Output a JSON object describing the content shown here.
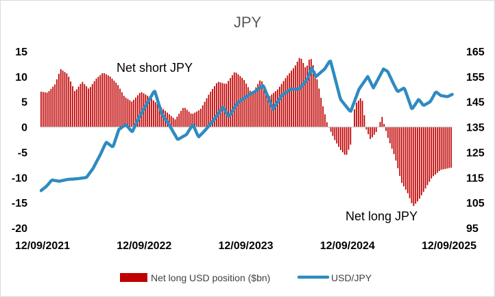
{
  "chart_data": {
    "type": "bar+line",
    "title": "JPY",
    "colors": {
      "bars": "#c00000",
      "line": "#2e8bc0",
      "zero_line": "#bfbfbf"
    },
    "x_tick_labels": [
      "12/09/2021",
      "12/09/2022",
      "12/09/2023",
      "12/09/2024",
      "12/09/2025"
    ],
    "x_range": [
      "2021-09-12",
      "2025-09-12"
    ],
    "y_left": {
      "min": -20,
      "max": 15,
      "ticks": [
        15,
        10,
        5,
        0,
        -5,
        -10,
        -15,
        -20
      ]
    },
    "y_right": {
      "min": 95,
      "max": 165,
      "ticks": [
        165,
        155,
        145,
        135,
        125,
        115,
        105,
        95
      ]
    },
    "grid": false,
    "annotations": [
      {
        "text": "Net short JPY"
      },
      {
        "text": "Net long JPY"
      }
    ],
    "legend": {
      "position": "bottom"
    },
    "series": [
      {
        "name": "Net long USD position ($bn)",
        "kind": "bar",
        "axis": "left",
        "anchors": [
          [
            "2021-09-12",
            7.0
          ],
          [
            "2021-10-05",
            6.8
          ],
          [
            "2021-11-01",
            8.5
          ],
          [
            "2021-11-20",
            11.5
          ],
          [
            "2021-12-15",
            10.5
          ],
          [
            "2022-01-10",
            7.0
          ],
          [
            "2022-02-05",
            9.0
          ],
          [
            "2022-03-01",
            7.5
          ],
          [
            "2022-03-25",
            9.5
          ],
          [
            "2022-04-20",
            10.8
          ],
          [
            "2022-05-15",
            10.0
          ],
          [
            "2022-06-10",
            8.5
          ],
          [
            "2022-07-05",
            6.0
          ],
          [
            "2022-08-01",
            5.0
          ],
          [
            "2022-09-01",
            7.0
          ],
          [
            "2022-10-01",
            6.0
          ],
          [
            "2022-11-01",
            4.5
          ],
          [
            "2022-12-01",
            3.0
          ],
          [
            "2023-01-01",
            1.5
          ],
          [
            "2023-02-01",
            4.0
          ],
          [
            "2023-03-01",
            2.5
          ],
          [
            "2023-04-01",
            3.5
          ],
          [
            "2023-05-01",
            6.5
          ],
          [
            "2023-06-01",
            9.0
          ],
          [
            "2023-07-01",
            8.5
          ],
          [
            "2023-08-01",
            11.0
          ],
          [
            "2023-09-01",
            9.5
          ],
          [
            "2023-10-01",
            6.5
          ],
          [
            "2023-11-01",
            9.5
          ],
          [
            "2023-12-01",
            6.0
          ],
          [
            "2024-01-01",
            7.5
          ],
          [
            "2024-02-01",
            10.0
          ],
          [
            "2024-03-01",
            12.0
          ],
          [
            "2024-03-20",
            14.0
          ],
          [
            "2024-04-10",
            11.5
          ],
          [
            "2024-04-25",
            14.0
          ],
          [
            "2024-05-15",
            10.5
          ],
          [
            "2024-06-05",
            5.0
          ],
          [
            "2024-06-25",
            0.5
          ],
          [
            "2024-07-20",
            -2.5
          ],
          [
            "2024-08-10",
            -4.5
          ],
          [
            "2024-08-30",
            -5.8
          ],
          [
            "2024-09-15",
            -3.5
          ],
          [
            "2024-10-01",
            4.5
          ],
          [
            "2024-10-25",
            6.0
          ],
          [
            "2024-11-10",
            -0.5
          ],
          [
            "2024-11-25",
            -2.5
          ],
          [
            "2024-12-15",
            -1.0
          ],
          [
            "2025-01-05",
            2.0
          ],
          [
            "2025-01-25",
            -2.0
          ],
          [
            "2025-02-20",
            -6.0
          ],
          [
            "2025-03-15",
            -11.0
          ],
          [
            "2025-04-05",
            -13.0
          ],
          [
            "2025-04-25",
            -15.8
          ],
          [
            "2025-05-15",
            -14.5
          ],
          [
            "2025-06-10",
            -12.0
          ],
          [
            "2025-07-01",
            -10.0
          ],
          [
            "2025-08-01",
            -8.5
          ],
          [
            "2025-09-12",
            -8.0
          ]
        ]
      },
      {
        "name": "USD/JPY",
        "kind": "line",
        "axis": "right",
        "anchors": [
          [
            "2021-09-12",
            109.8
          ],
          [
            "2021-10-01",
            111.5
          ],
          [
            "2021-10-20",
            114.0
          ],
          [
            "2021-11-15",
            113.5
          ],
          [
            "2021-12-15",
            114.2
          ],
          [
            "2022-01-20",
            114.5
          ],
          [
            "2022-02-20",
            115.0
          ],
          [
            "2022-03-15",
            118.5
          ],
          [
            "2022-04-10",
            124.0
          ],
          [
            "2022-05-01",
            129.0
          ],
          [
            "2022-05-25",
            127.0
          ],
          [
            "2022-06-15",
            134.0
          ],
          [
            "2022-07-10",
            136.0
          ],
          [
            "2022-08-01",
            133.0
          ],
          [
            "2022-09-01",
            140.0
          ],
          [
            "2022-10-20",
            149.5
          ],
          [
            "2022-11-15",
            140.0
          ],
          [
            "2022-12-10",
            136.0
          ],
          [
            "2023-01-10",
            130.0
          ],
          [
            "2023-02-10",
            132.0
          ],
          [
            "2023-03-05",
            136.0
          ],
          [
            "2023-03-25",
            131.0
          ],
          [
            "2023-04-20",
            134.0
          ],
          [
            "2023-05-20",
            138.0
          ],
          [
            "2023-06-20",
            143.0
          ],
          [
            "2023-07-10",
            139.0
          ],
          [
            "2023-08-10",
            144.5
          ],
          [
            "2023-09-10",
            147.0
          ],
          [
            "2023-10-10",
            149.0
          ],
          [
            "2023-11-10",
            151.5
          ],
          [
            "2023-12-15",
            142.0
          ],
          [
            "2024-01-15",
            147.5
          ],
          [
            "2024-02-15",
            150.0
          ],
          [
            "2024-03-15",
            150.0
          ],
          [
            "2024-04-15",
            154.0
          ],
          [
            "2024-04-29",
            158.5
          ],
          [
            "2024-05-15",
            155.0
          ],
          [
            "2024-06-15",
            158.0
          ],
          [
            "2024-07-05",
            161.5
          ],
          [
            "2024-07-25",
            153.0
          ],
          [
            "2024-08-10",
            146.0
          ],
          [
            "2024-09-15",
            141.0
          ],
          [
            "2024-10-15",
            150.0
          ],
          [
            "2024-11-15",
            155.0
          ],
          [
            "2024-12-05",
            150.5
          ],
          [
            "2025-01-10",
            158.0
          ],
          [
            "2025-01-25",
            157.0
          ],
          [
            "2025-02-15",
            152.0
          ],
          [
            "2025-03-01",
            149.0
          ],
          [
            "2025-03-25",
            150.5
          ],
          [
            "2025-04-21",
            142.0
          ],
          [
            "2025-05-15",
            146.0
          ],
          [
            "2025-06-01",
            143.5
          ],
          [
            "2025-06-25",
            145.0
          ],
          [
            "2025-07-15",
            149.0
          ],
          [
            "2025-08-01",
            147.5
          ],
          [
            "2025-08-25",
            147.0
          ],
          [
            "2025-09-12",
            148.0
          ]
        ]
      }
    ]
  }
}
